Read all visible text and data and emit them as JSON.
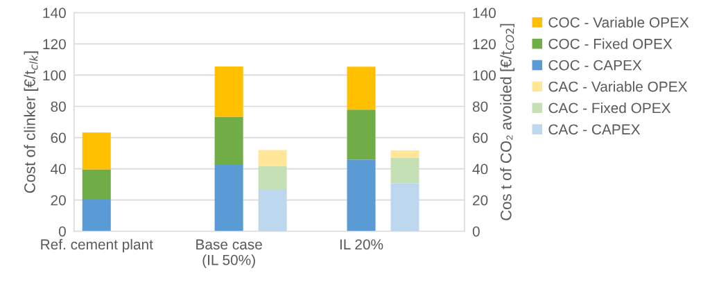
{
  "chart_data": {
    "type": "bar",
    "stacked": true,
    "categories": [
      "Ref. cement plant",
      "Base case\n(IL 50%)",
      "IL 20%"
    ],
    "ylabel": "Cost of clinker [€/t$_{clk}$]",
    "y2label": "Cos t of CO₂ avoided [€/t$_{CO2}$]",
    "ylim": [
      0,
      140
    ],
    "yticks": [
      0,
      20,
      40,
      60,
      80,
      100,
      120,
      140
    ],
    "y2lim": [
      0,
      140
    ],
    "y2ticks": [
      0,
      20,
      40,
      60,
      80,
      100,
      120,
      140
    ],
    "grid": "y",
    "legend": "right",
    "series": [
      {
        "name": "COC - CAPEX",
        "color": "#5b9bd5",
        "values": [
          20.7,
          42.9,
          45.9
        ]
      },
      {
        "name": "COC - Fixed OPEX",
        "color": "#70ad47",
        "values": [
          18.9,
          30.4,
          32.0
        ]
      },
      {
        "name": "COC - Variable OPEX",
        "color": "#ffc000",
        "values": [
          23.6,
          32.2,
          27.5
        ]
      },
      {
        "name": "CAC - CAPEX",
        "color": "#bdd7ee",
        "axis": "y2",
        "values": [
          null,
          27.0,
          30.8
        ]
      },
      {
        "name": "CAC - Fixed OPEX",
        "color": "#c5e0b4",
        "axis": "y2",
        "values": [
          null,
          14.7,
          16.3
        ]
      },
      {
        "name": "CAC - Variable OPEX",
        "color": "#ffe699",
        "axis": "y2",
        "values": [
          null,
          10.3,
          4.7
        ]
      }
    ]
  }
}
